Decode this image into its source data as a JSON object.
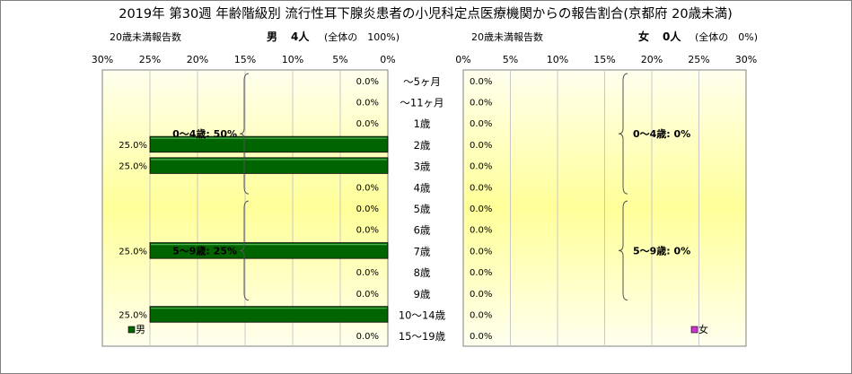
{
  "title": "2019年 第30週 年齢階級別 流行性耳下腺炎患者の小児科定点医療機関からの報告割合(京都府 20歳未満)",
  "male": {
    "header_label": "20歳未満報告数",
    "header_sex": "男",
    "header_count": "4人",
    "header_total": "(全体の　100%)",
    "legend": "男",
    "group_labels": [
      "0～4歳: 50%",
      "5～9歳: 25%"
    ]
  },
  "female": {
    "header_label": "20歳未満報告数",
    "header_sex": "女",
    "header_count": "0人",
    "header_total": "(全体の　0%)",
    "legend": "女",
    "group_labels": [
      "0～4歳: 0%",
      "5～9歳: 0%"
    ]
  },
  "colors": {
    "male_bar": "#006400",
    "female_marker": "#cc33cc",
    "plot_edge": "#ffffcc",
    "plot_center": "#ffff99"
  },
  "chart_data": {
    "type": "bar",
    "orientation": "horizontal",
    "categories": [
      "～5ヶ月",
      "～11ヶ月",
      "1歳",
      "2歳",
      "3歳",
      "4歳",
      "5歳",
      "6歳",
      "7歳",
      "8歳",
      "9歳",
      "10～14歳",
      "15～19歳"
    ],
    "xlim": [
      0,
      30
    ],
    "x_ticks": [
      "30%",
      "25%",
      "20%",
      "15%",
      "10%",
      "5%",
      "0%"
    ],
    "x_ticks_right": [
      "0%",
      "5%",
      "10%",
      "15%",
      "20%",
      "25%",
      "30%"
    ],
    "series": [
      {
        "name": "男",
        "values": [
          0,
          0,
          0,
          25,
          25,
          0,
          0,
          0,
          25,
          0,
          0,
          25,
          0
        ],
        "labels": [
          "0.0%",
          "0.0%",
          "0.0%",
          "25.0%",
          "25.0%",
          "0.0%",
          "0.0%",
          "0.0%",
          "25.0%",
          "0.0%",
          "0.0%",
          "25.0%",
          "0.0%"
        ]
      },
      {
        "name": "女",
        "values": [
          0,
          0,
          0,
          0,
          0,
          0,
          0,
          0,
          0,
          0,
          0,
          0,
          0
        ],
        "labels": [
          "0.0%",
          "0.0%",
          "0.0%",
          "0.0%",
          "0.0%",
          "0.0%",
          "0.0%",
          "0.0%",
          "0.0%",
          "0.0%",
          "0.0%",
          "0.0%",
          "0.0%"
        ]
      }
    ],
    "groups": [
      {
        "label_male": "0～4歳: 50%",
        "label_female": "0～4歳: 0%",
        "start": 0,
        "end": 5
      },
      {
        "label_male": "5～9歳: 25%",
        "label_female": "5～9歳: 0%",
        "start": 6,
        "end": 10
      }
    ],
    "grid": true
  }
}
